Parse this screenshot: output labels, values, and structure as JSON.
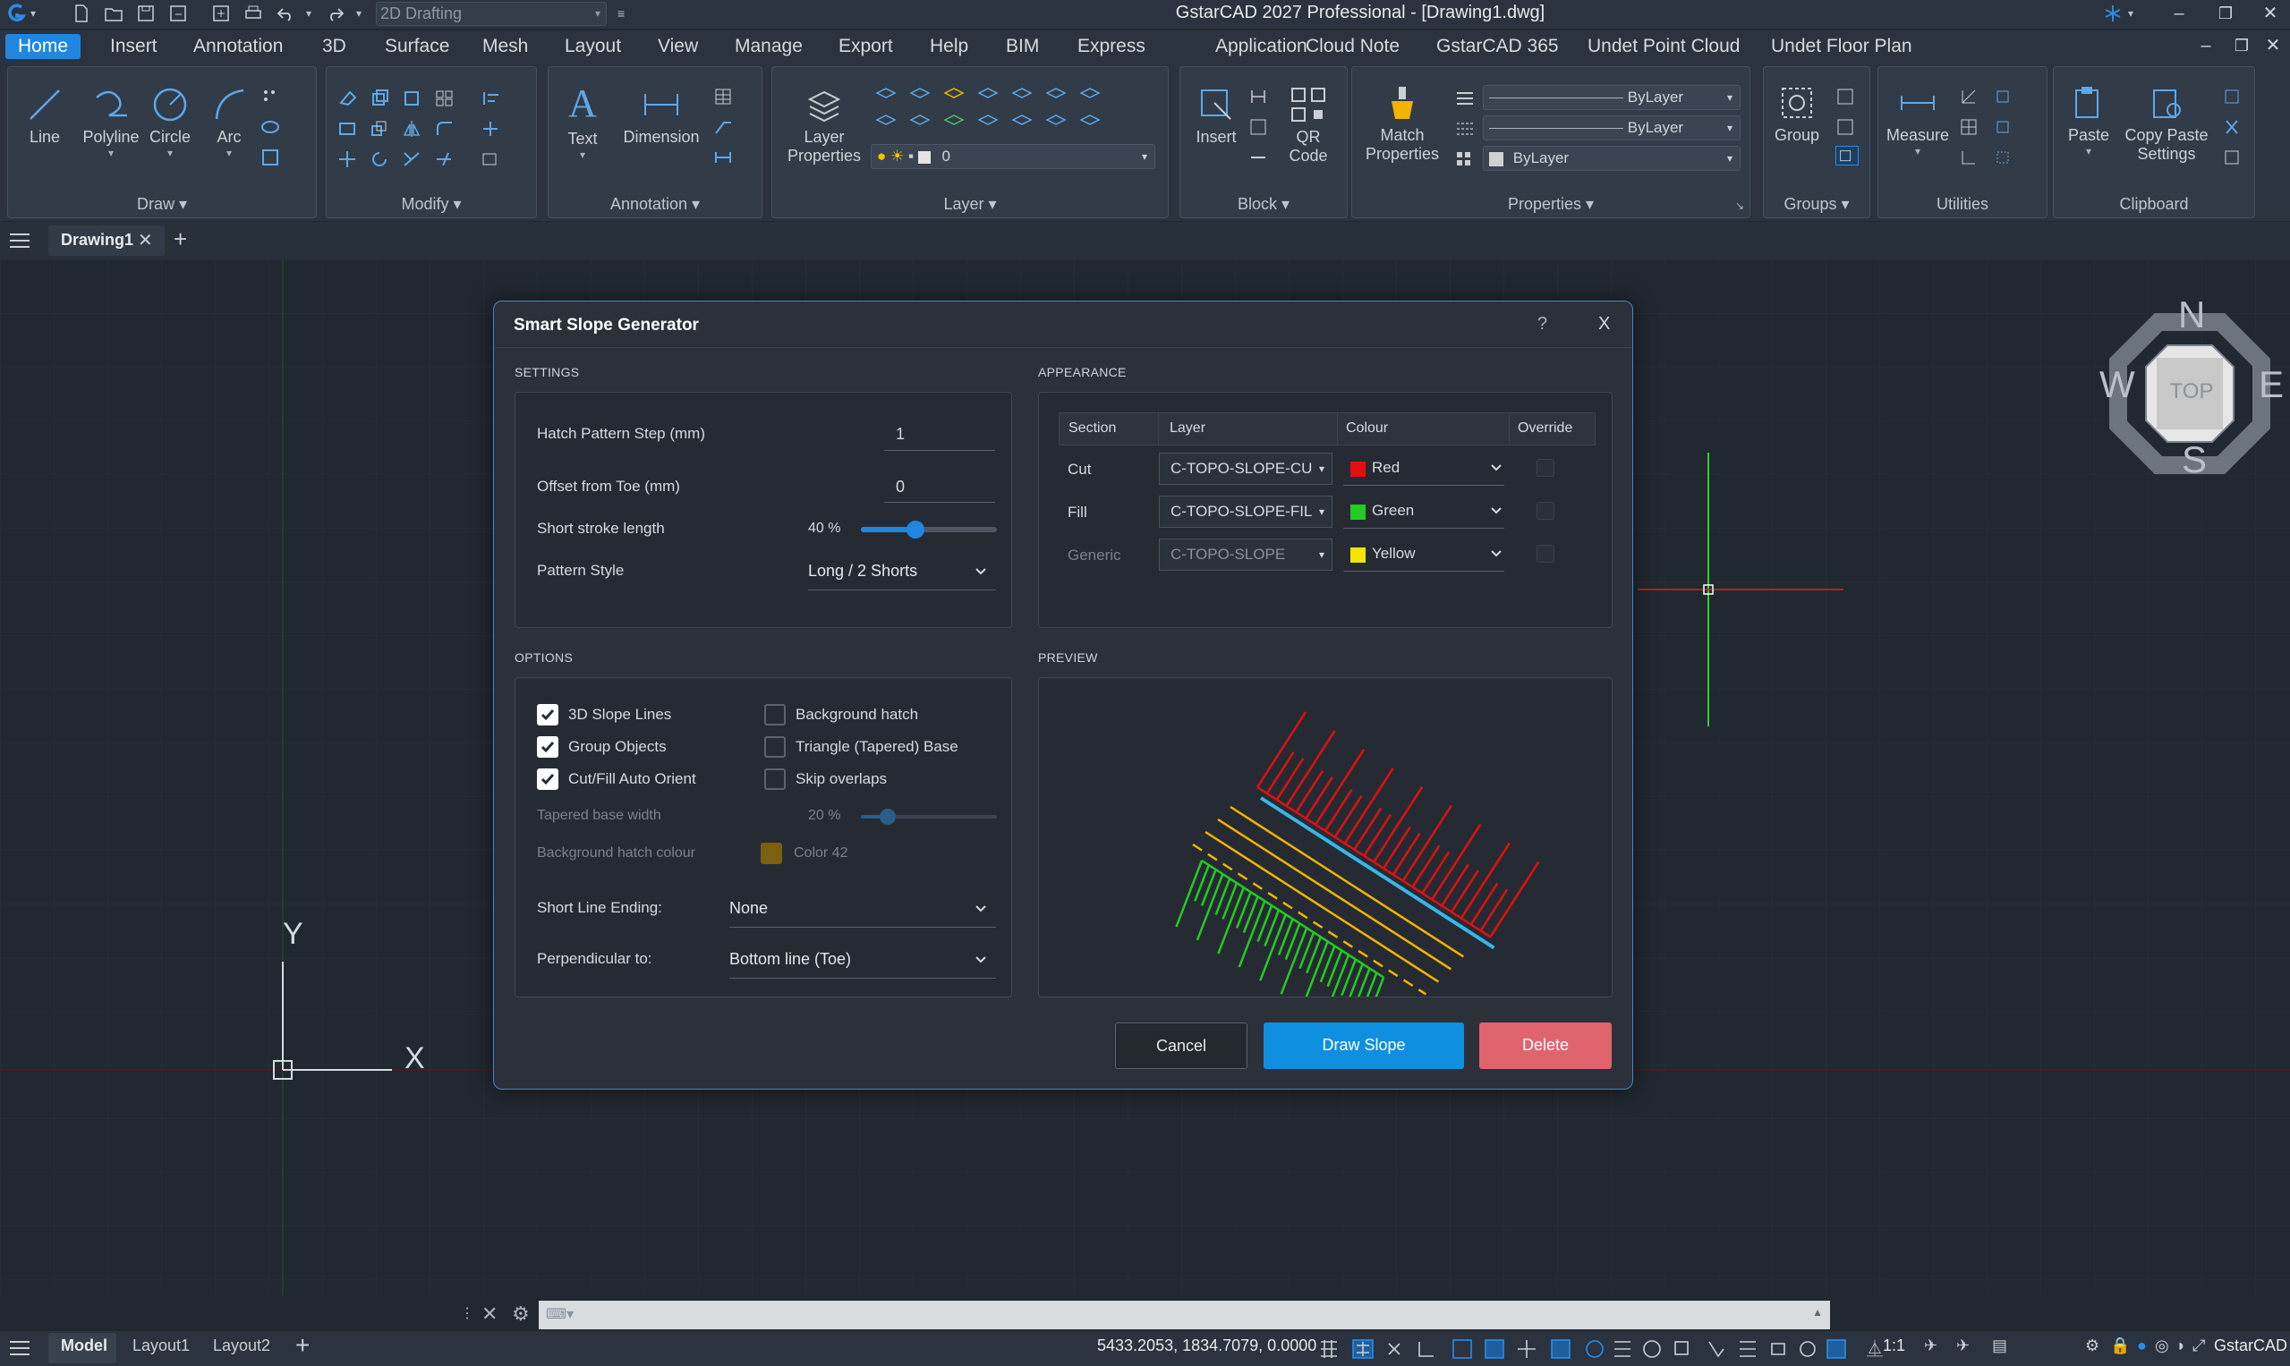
{
  "app": {
    "title": "GstarCAD 2027 Professional - [Drawing1.dwg]",
    "workspace": "2D Drafting"
  },
  "menu": [
    "Home",
    "Insert",
    "Annotation",
    "3D",
    "Surface",
    "Mesh",
    "Layout",
    "View",
    "Manage",
    "Export",
    "Help",
    "BIM",
    "Express",
    "Application",
    "Cloud Note",
    "GstarCAD 365",
    "Undet Point Cloud",
    "Undet Floor Plan"
  ],
  "ribbon": {
    "draw": {
      "title": "Draw ▾",
      "tools": [
        "Line",
        "Polyline",
        "Circle",
        "Arc"
      ]
    },
    "modify": {
      "title": "Modify ▾"
    },
    "annotation": {
      "title": "Annotation ▾",
      "tools": [
        "Text",
        "Dimension"
      ]
    },
    "layer": {
      "title": "Layer ▾",
      "tool": "Layer Properties",
      "current": "0"
    },
    "block": {
      "title": "Block ▾",
      "tools": [
        "Insert",
        "QR Code"
      ]
    },
    "properties": {
      "title": "Properties ▾",
      "tool": "Match Properties",
      "values": [
        "ByLayer",
        "ByLayer",
        "ByLayer"
      ]
    },
    "groups": {
      "title": "Groups ▾",
      "tool": "Group"
    },
    "utilities": {
      "title": "Utilities",
      "tool": "Measure"
    },
    "clipboard": {
      "title": "Clipboard",
      "tools": [
        "Paste",
        "Copy Paste Settings"
      ]
    }
  },
  "doc_tab": "Drawing1",
  "viewcube": {
    "n": "N",
    "s": "S",
    "e": "E",
    "w": "W",
    "face": "TOP"
  },
  "ucs": {
    "x": "X",
    "y": "Y"
  },
  "dialog": {
    "title": "Smart Slope Generator",
    "help": "?",
    "close": "X",
    "settings": {
      "header": "SETTINGS",
      "hatch_step_label": "Hatch Pattern Step (mm)",
      "hatch_step_value": "1",
      "offset_label": "Offset from Toe (mm)",
      "offset_value": "0",
      "short_stroke_label": "Short stroke length",
      "short_stroke_value": "40 %",
      "short_stroke_fraction": 0.4,
      "pattern_label": "Pattern Style",
      "pattern_value": "Long / 2 Shorts"
    },
    "appearance": {
      "header": "APPEARANCE",
      "columns": [
        "Section",
        "Layer",
        "Colour",
        "Override"
      ],
      "rows": [
        {
          "section": "Cut",
          "layer": "C-TOPO-SLOPE-CUT",
          "colour": "Red",
          "swatch": "#e01010",
          "dim": false
        },
        {
          "section": "Fill",
          "layer": "C-TOPO-SLOPE-FILL",
          "colour": "Green",
          "swatch": "#22cc22",
          "dim": false
        },
        {
          "section": "Generic",
          "layer": "C-TOPO-SLOPE",
          "colour": "Yellow",
          "swatch": "#f2e600",
          "dim": true
        }
      ]
    },
    "options": {
      "header": "OPTIONS",
      "checks_left": [
        {
          "label": "3D Slope Lines",
          "checked": true
        },
        {
          "label": "Group Objects",
          "checked": true
        },
        {
          "label": "Cut/Fill Auto Orient",
          "checked": true
        }
      ],
      "checks_right": [
        {
          "label": "Background hatch",
          "checked": false
        },
        {
          "label": "Triangle (Tapered) Base",
          "checked": false
        },
        {
          "label": "Skip overlaps",
          "checked": false
        }
      ],
      "tapered_label": "Tapered base width",
      "tapered_value": "20 %",
      "tapered_fraction": 0.2,
      "bg_colour_label": "Background hatch colour",
      "bg_colour_value": "Color 42",
      "bg_colour_swatch": "#7a6010",
      "short_end_label": "Short Line Ending:",
      "short_end_value": "None",
      "perp_label": "Perpendicular to:",
      "perp_value": "Bottom line (Toe)"
    },
    "preview": {
      "header": "PREVIEW"
    },
    "buttons": {
      "cancel": "Cancel",
      "draw": "Draw Slope",
      "delete": "Delete"
    }
  },
  "status": {
    "tabs": [
      "Model",
      "Layout1",
      "Layout2"
    ],
    "coords": "5433.2053, 1834.7079, 0.0000",
    "scale": "1:1",
    "brand": "GstarCAD"
  },
  "colors": {
    "accent": "#1f87e0",
    "draw": "#0f8fdf",
    "delete": "#e0646e",
    "cut": "#e01010",
    "fill": "#22cc22",
    "toe": "#f2b400",
    "crest": "#38b6e8"
  }
}
